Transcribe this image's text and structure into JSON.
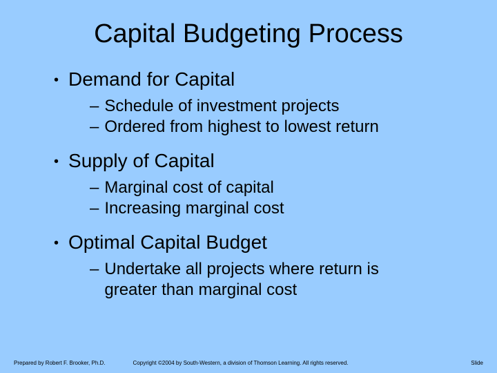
{
  "background_color": "#99ccff",
  "text_color": "#000000",
  "title": {
    "text": "Capital Budgeting Process",
    "fontsize": 38,
    "align": "center"
  },
  "bullets": [
    {
      "label": "Demand for Capital",
      "sub": [
        "Schedule of investment projects",
        "Ordered from highest to lowest return"
      ]
    },
    {
      "label": "Supply of Capital",
      "sub": [
        "Marginal cost of capital",
        "Increasing marginal cost"
      ]
    },
    {
      "label": "Optimal Capital Budget",
      "sub": [
        "Undertake all projects where return is greater than marginal cost"
      ]
    }
  ],
  "footer": {
    "left": "Prepared by Robert F. Brooker, Ph.D.",
    "center": "Copyright ©2004 by South-Western, a division of Thomson Learning. All rights reserved.",
    "right": "Slide"
  }
}
